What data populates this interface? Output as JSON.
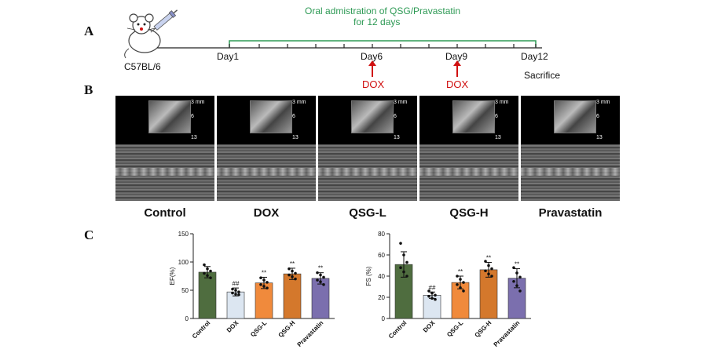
{
  "panel_a": {
    "letter": "A",
    "strain": "C57BL/6",
    "admin_line1": "Oral admistration of QSG/Pravastatin",
    "admin_line2": "for 12 days",
    "days": [
      "Day1",
      "Day6",
      "Day9",
      "Day12"
    ],
    "dox1": "DOX",
    "dox2": "DOX",
    "sacrifice": "Sacrifice",
    "colors": {
      "admin": "#2e9a55",
      "dox": "#d01010"
    }
  },
  "panel_b": {
    "letter": "B",
    "groups": [
      "Control",
      "DOX",
      "QSG-L",
      "QSG-H",
      "Pravastatin"
    ],
    "scale_labels": [
      "3 mm",
      "6",
      "13"
    ]
  },
  "panel_c": {
    "letter": "C"
  },
  "chart_data": [
    {
      "type": "bar",
      "ylabel": "EF(%)",
      "ylim": [
        0,
        150
      ],
      "yticks": [
        0,
        50,
        100,
        150
      ],
      "categories": [
        "Control",
        "DOX",
        "QSG-L",
        "QSG-H",
        "Pravastatin"
      ],
      "values": [
        82,
        47,
        63,
        79,
        71
      ],
      "errors": [
        10,
        7,
        10,
        10,
        10
      ],
      "annotations": [
        "",
        "##",
        "**",
        "**",
        "**"
      ],
      "colors": [
        "#4f6d3f",
        "#dce6f1",
        "#f08a3c",
        "#d4782c",
        "#7b6fae"
      ],
      "points": [
        [
          95,
          88,
          84,
          80,
          76,
          72
        ],
        [
          52,
          50,
          47,
          45,
          43,
          42
        ],
        [
          72,
          68,
          64,
          60,
          57,
          54
        ],
        [
          88,
          84,
          80,
          77,
          74,
          70
        ],
        [
          81,
          77,
          73,
          68,
          65,
          60
        ]
      ]
    },
    {
      "type": "bar",
      "ylabel": "FS (%)",
      "ylim": [
        0,
        80
      ],
      "yticks": [
        0,
        20,
        40,
        60,
        80
      ],
      "categories": [
        "Control",
        "DOX",
        "QSG-L",
        "QSG-H",
        "Pravastatin"
      ],
      "values": [
        51,
        22,
        34,
        46,
        38
      ],
      "errors": [
        12,
        3,
        6,
        7,
        9
      ],
      "annotations": [
        "",
        "##",
        "**",
        "**",
        "**"
      ],
      "colors": [
        "#4f6d3f",
        "#dce6f1",
        "#f08a3c",
        "#d4782c",
        "#7b6fae"
      ],
      "points": [
        [
          71,
          60,
          53,
          48,
          44,
          40
        ],
        [
          26,
          24,
          22,
          21,
          19,
          18
        ],
        [
          40,
          37,
          34,
          32,
          29,
          26
        ],
        [
          54,
          50,
          47,
          45,
          42,
          40
        ],
        [
          48,
          43,
          39,
          35,
          31,
          26
        ]
      ]
    }
  ]
}
